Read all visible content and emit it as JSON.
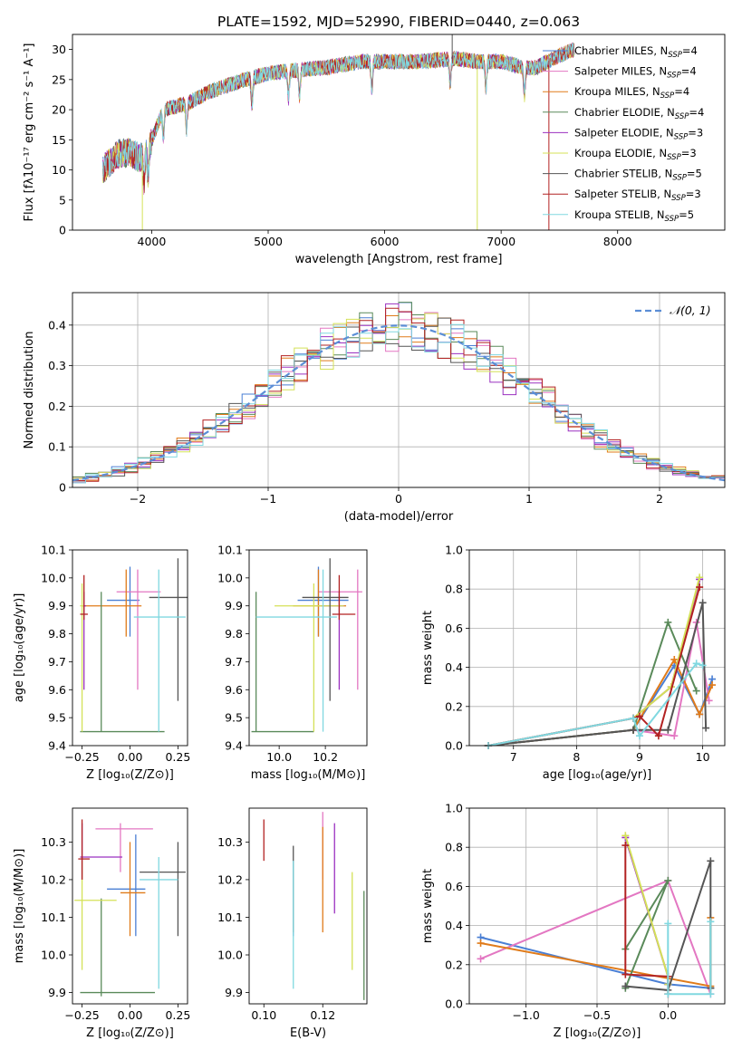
{
  "figure_title": "PLATE=1592, MJD=52990, FIBERID=0440, z=0.063",
  "series": [
    {
      "name": "Chabrier MILES",
      "nssp": "4",
      "color": "#4a7fd4"
    },
    {
      "name": "Salpeter MILES",
      "nssp": "4",
      "color": "#e377c2"
    },
    {
      "name": "Kroupa MILES",
      "nssp": "4",
      "color": "#e07b1a"
    },
    {
      "name": "Chabrier ELODIE",
      "nssp": "4",
      "color": "#5a8a5a"
    },
    {
      "name": "Salpeter ELODIE",
      "nssp": "3",
      "color": "#9b30c0"
    },
    {
      "name": "Kroupa ELODIE",
      "nssp": "3",
      "color": "#d4e157"
    },
    {
      "name": "Chabrier STELIB",
      "nssp": "5",
      "color": "#555555"
    },
    {
      "name": "Salpeter STELIB",
      "nssp": "3",
      "color": "#b22222"
    },
    {
      "name": "Kroupa STELIB",
      "nssp": "5",
      "color": "#80d8e0"
    }
  ],
  "chart_data": [
    {
      "id": "spectrum",
      "type": "line",
      "xlabel": "wavelength [Angstrom, rest frame]",
      "ylabel": "Flux [fλ10⁻¹⁷ erg cm⁻² s⁻¹ A⁻¹]",
      "xlim": [
        3320,
        8920
      ],
      "ylim": [
        0,
        32.5
      ],
      "xticks": [
        4000,
        5000,
        6000,
        7000,
        8000
      ],
      "yticks": [
        0,
        5,
        10,
        15,
        20,
        25,
        30
      ],
      "x_start": 3580,
      "x_end": 7630,
      "continuum": [
        [
          3580,
          10
        ],
        [
          3700,
          12.5
        ],
        [
          3800,
          13
        ],
        [
          3900,
          12
        ],
        [
          3950,
          13
        ],
        [
          4000,
          15
        ],
        [
          4100,
          20
        ],
        [
          4300,
          21
        ],
        [
          4500,
          23
        ],
        [
          4800,
          25
        ],
        [
          5000,
          26
        ],
        [
          5200,
          26.5
        ],
        [
          5500,
          27
        ],
        [
          5800,
          28
        ],
        [
          6000,
          28
        ],
        [
          6300,
          28
        ],
        [
          6600,
          28.5
        ],
        [
          6800,
          28
        ],
        [
          7000,
          28
        ],
        [
          7200,
          27
        ],
        [
          7300,
          27
        ],
        [
          7500,
          29
        ],
        [
          7630,
          30
        ]
      ],
      "absorption_lines": [
        3934,
        3969,
        4101,
        4300,
        4861,
        5175,
        5270,
        5890,
        6563,
        6870,
        7200
      ],
      "spikes": [
        {
          "series": 5,
          "x": 3920,
          "y": 0
        },
        {
          "series": 5,
          "x": 6795,
          "y": 0
        },
        {
          "series": 7,
          "x": 7410,
          "y": 0
        },
        {
          "series": 6,
          "x": 6580,
          "y": 32.5
        }
      ],
      "legend": "right"
    },
    {
      "id": "residual_hist",
      "type": "area",
      "xlabel": "(data-model)/error",
      "ylabel": "Normed distribution",
      "xlim": [
        -2.5,
        2.5
      ],
      "ylim": [
        0,
        0.48
      ],
      "xticks": [
        -2,
        -1,
        0,
        1,
        2
      ],
      "yticks": [
        0,
        0.1,
        0.2,
        0.3,
        0.4
      ],
      "bin_width": 0.1,
      "normal_label": "𝒩(0, 1)",
      "normal_color": "#5b8ed6",
      "grid": true,
      "legend": "top-right"
    },
    {
      "id": "age_vs_Z",
      "type": "scatter",
      "xlabel": "Z [log₁₀(Z/Z⊙)]",
      "ylabel": "age  [log₁₀(age/yr)]",
      "xlim": [
        -0.3,
        0.3
      ],
      "ylim": [
        9.4,
        10.1
      ],
      "xticks": [
        -0.25,
        0.0,
        0.25
      ],
      "xticklabels": [
        "−0.25",
        "0.00",
        "0.25"
      ],
      "yticks": [
        9.4,
        9.5,
        9.6,
        9.7,
        9.8,
        9.9,
        10.0,
        10.1
      ],
      "yticklabels": [
        "9.4",
        "9.5",
        "9.6",
        "9.7",
        "9.8",
        "9.9",
        "10.0",
        "10.1"
      ],
      "points": [
        {
          "s": 0,
          "x": 0.0,
          "xe": [
            -0.12,
            0.05
          ],
          "y": 9.92,
          "ye": [
            9.79,
            10.04
          ]
        },
        {
          "s": 1,
          "x": 0.04,
          "xe": [
            -0.07,
            0.16
          ],
          "y": 9.95,
          "ye": [
            9.6,
            10.03
          ]
        },
        {
          "s": 2,
          "x": -0.02,
          "xe": [
            -0.25,
            0.06
          ],
          "y": 9.9,
          "ye": [
            9.79,
            10.03
          ]
        },
        {
          "s": 3,
          "x": -0.15,
          "xe": [
            -0.26,
            0.18
          ],
          "y": 9.45,
          "ye": [
            9.45,
            9.95
          ]
        },
        {
          "s": 4,
          "x": -0.24,
          "xe": [
            -0.25,
            -0.23
          ],
          "y": 9.9,
          "ye": [
            9.6,
            9.95
          ]
        },
        {
          "s": 5,
          "x": -0.25,
          "xe": [
            -0.26,
            -0.24
          ],
          "y": 9.9,
          "ye": [
            9.45,
            9.98
          ]
        },
        {
          "s": 6,
          "x": 0.25,
          "xe": [
            0.1,
            0.31
          ],
          "y": 9.93,
          "ye": [
            9.56,
            10.07
          ]
        },
        {
          "s": 7,
          "x": -0.24,
          "xe": [
            -0.26,
            -0.22
          ],
          "y": 9.87,
          "ye": [
            9.85,
            10.01
          ]
        },
        {
          "s": 8,
          "x": 0.15,
          "xe": [
            0.02,
            0.29
          ],
          "y": 9.86,
          "ye": [
            9.45,
            10.03
          ]
        }
      ]
    },
    {
      "id": "age_vs_mass",
      "type": "scatter",
      "xlabel": "mass [log₁₀(M/M⊙)]",
      "ylabel": "",
      "xlim": [
        9.87,
        10.38
      ],
      "ylim": [
        9.4,
        10.1
      ],
      "xticks": [
        10.0,
        10.2
      ],
      "xticklabels": [
        "10.0",
        "10.2"
      ],
      "yticks": [
        9.4,
        9.5,
        9.6,
        9.7,
        9.8,
        9.9,
        10.0,
        10.1
      ],
      "yticklabels": [
        "9.4",
        "9.5",
        "9.6",
        "9.7",
        "9.8",
        "9.9",
        "10.0",
        "10.1"
      ],
      "points": [
        {
          "s": 0,
          "x": 10.17,
          "xe": [
            10.08,
            10.3
          ],
          "y": 9.92,
          "ye": [
            9.79,
            10.04
          ]
        },
        {
          "s": 1,
          "x": 10.34,
          "xe": [
            10.17,
            10.36
          ],
          "y": 9.95,
          "ye": [
            9.6,
            10.03
          ]
        },
        {
          "s": 2,
          "x": 10.17,
          "xe": [
            10.06,
            10.29
          ],
          "y": 9.9,
          "ye": [
            9.79,
            10.03
          ]
        },
        {
          "s": 3,
          "x": 9.9,
          "xe": [
            9.88,
            10.15
          ],
          "y": 9.45,
          "ye": [
            9.45,
            9.95
          ]
        },
        {
          "s": 4,
          "x": 10.26,
          "xe": [
            10.18,
            10.28
          ],
          "y": 9.9,
          "ye": [
            9.6,
            9.95
          ]
        },
        {
          "s": 5,
          "x": 10.15,
          "xe": [
            9.98,
            10.28
          ],
          "y": 9.9,
          "ye": [
            9.45,
            9.98
          ]
        },
        {
          "s": 6,
          "x": 10.22,
          "xe": [
            10.1,
            10.3
          ],
          "y": 9.93,
          "ye": [
            9.56,
            10.07
          ]
        },
        {
          "s": 7,
          "x": 10.26,
          "xe": [
            10.23,
            10.33
          ],
          "y": 9.87,
          "ye": [
            9.85,
            10.01
          ]
        },
        {
          "s": 8,
          "x": 10.19,
          "xe": [
            9.9,
            10.25
          ],
          "y": 9.86,
          "ye": [
            9.45,
            10.03
          ]
        }
      ]
    },
    {
      "id": "weight_vs_age",
      "type": "line",
      "xlabel": "age  [log₁₀(age/yr)]",
      "ylabel": "mass weight",
      "xlim": [
        6.3,
        10.35
      ],
      "ylim": [
        0,
        1.0
      ],
      "xticks": [
        7,
        8,
        9,
        10
      ],
      "xticklabels": [
        "7",
        "8",
        "9",
        "10"
      ],
      "yticks": [
        0,
        0.2,
        0.4,
        0.6,
        0.8,
        1.0
      ],
      "yticklabels": [
        "0.0",
        "0.2",
        "0.4",
        "0.6",
        "0.8",
        "1.0"
      ],
      "grid": true,
      "lines": [
        {
          "s": 0,
          "x": [
            6.6,
            8.9,
            9.55,
            9.95,
            10.15
          ],
          "y": [
            0.0,
            0.08,
            0.41,
            0.16,
            0.34
          ]
        },
        {
          "s": 1,
          "x": [
            6.6,
            8.9,
            9.55,
            9.9,
            10.1
          ],
          "y": [
            0.0,
            0.08,
            0.05,
            0.63,
            0.23
          ]
        },
        {
          "s": 2,
          "x": [
            6.6,
            8.9,
            9.55,
            9.95,
            10.15
          ],
          "y": [
            0.0,
            0.08,
            0.44,
            0.16,
            0.31
          ]
        },
        {
          "s": 3,
          "x": [
            6.6,
            8.9,
            9.45,
            9.9
          ],
          "y": [
            0.0,
            0.08,
            0.63,
            0.28
          ]
        },
        {
          "s": 4,
          "x": [
            6.6,
            8.9,
            9.5,
            9.95
          ],
          "y": [
            0.0,
            0.14,
            0.3,
            0.85
          ]
        },
        {
          "s": 5,
          "x": [
            6.6,
            8.9,
            9.5,
            9.95
          ],
          "y": [
            0.0,
            0.14,
            0.3,
            0.86
          ]
        },
        {
          "s": 6,
          "x": [
            6.6,
            8.9,
            9.45,
            10.0,
            10.05
          ],
          "y": [
            0.0,
            0.08,
            0.08,
            0.73,
            0.09
          ]
        },
        {
          "s": 7,
          "x": [
            6.6,
            8.9,
            9.0,
            9.3,
            9.95
          ],
          "y": [
            0.0,
            0.14,
            0.15,
            0.05,
            0.81
          ]
        },
        {
          "s": 8,
          "x": [
            6.6,
            8.9,
            9.0,
            9.9,
            10.0
          ],
          "y": [
            0.0,
            0.14,
            0.05,
            0.42,
            0.41
          ]
        }
      ]
    },
    {
      "id": "mass_vs_Z",
      "type": "scatter",
      "xlabel": "Z [log₁₀(Z/Z⊙)]",
      "ylabel": "mass [log₁₀(M/M⊙)]",
      "xlim": [
        -0.3,
        0.3
      ],
      "ylim": [
        9.87,
        10.39
      ],
      "xticks": [
        -0.25,
        0.0,
        0.25
      ],
      "xticklabels": [
        "−0.25",
        "0.00",
        "0.25"
      ],
      "yticks": [
        9.9,
        10.0,
        10.1,
        10.2,
        10.3
      ],
      "yticklabels": [
        "9.9",
        "10.0",
        "10.1",
        "10.2",
        "10.3"
      ],
      "points": [
        {
          "s": 0,
          "x": 0.03,
          "xe": [
            -0.12,
            0.08
          ],
          "y": 10.175,
          "ye": [
            10.05,
            10.32
          ]
        },
        {
          "s": 1,
          "x": -0.05,
          "xe": [
            -0.18,
            0.12
          ],
          "y": 10.335,
          "ye": [
            10.22,
            10.35
          ]
        },
        {
          "s": 2,
          "x": 0.0,
          "xe": [
            -0.05,
            0.08
          ],
          "y": 10.165,
          "ye": [
            10.05,
            10.3
          ]
        },
        {
          "s": 3,
          "x": -0.15,
          "xe": [
            -0.26,
            0.13
          ],
          "y": 9.9,
          "ye": [
            9.89,
            10.15
          ]
        },
        {
          "s": 4,
          "x": -0.25,
          "xe": [
            -0.26,
            -0.04
          ],
          "y": 10.26,
          "ye": [
            10.2,
            10.35
          ]
        },
        {
          "s": 5,
          "x": -0.25,
          "xe": [
            -0.29,
            -0.07
          ],
          "y": 10.145,
          "ye": [
            9.96,
            10.25
          ]
        },
        {
          "s": 6,
          "x": 0.25,
          "xe": [
            0.05,
            0.29
          ],
          "y": 10.22,
          "ye": [
            10.05,
            10.3
          ]
        },
        {
          "s": 7,
          "x": -0.25,
          "xe": [
            -0.27,
            -0.21
          ],
          "y": 10.255,
          "ye": [
            10.2,
            10.36
          ]
        },
        {
          "s": 8,
          "x": 0.15,
          "xe": [
            0.05,
            0.25
          ],
          "y": 10.2,
          "ye": [
            9.91,
            10.26
          ]
        }
      ]
    },
    {
      "id": "mass_vs_ebv",
      "type": "scatter",
      "xlabel": "E(B-V)",
      "ylabel": "",
      "xlim": [
        0.095,
        0.135
      ],
      "ylim": [
        9.87,
        10.39
      ],
      "xticks": [
        0.1,
        0.12
      ],
      "xticklabels": [
        "0.10",
        "0.12"
      ],
      "yticks": [
        9.9,
        10.0,
        10.1,
        10.2,
        10.3
      ],
      "yticklabels": [
        "9.9",
        "10.0",
        "10.1",
        "10.2",
        "10.3"
      ],
      "points": [
        {
          "s": 0,
          "x": 0.11,
          "y": 10.16,
          "ye": [
            10.05,
            10.25
          ]
        },
        {
          "s": 1,
          "x": 0.12,
          "y": 10.3,
          "ye": [
            10.2,
            10.38
          ]
        },
        {
          "s": 2,
          "x": 0.12,
          "y": 10.17,
          "ye": [
            10.06,
            10.34
          ]
        },
        {
          "s": 3,
          "x": 0.134,
          "y": 10.0,
          "ye": [
            9.88,
            10.17
          ]
        },
        {
          "s": 4,
          "x": 0.124,
          "y": 10.22,
          "ye": [
            10.11,
            10.35
          ]
        },
        {
          "s": 5,
          "x": 0.13,
          "y": 10.1,
          "ye": [
            9.96,
            10.22
          ]
        },
        {
          "s": 6,
          "x": 0.11,
          "y": 10.22,
          "ye": [
            10.06,
            10.29
          ]
        },
        {
          "s": 7,
          "x": 0.1,
          "y": 10.3,
          "ye": [
            10.25,
            10.36
          ]
        },
        {
          "s": 8,
          "x": 0.11,
          "y": 10.08,
          "ye": [
            9.91,
            10.25
          ]
        }
      ]
    },
    {
      "id": "weight_vs_Z",
      "type": "line",
      "xlabel": "Z [log₁₀(Z/Z⊙)]",
      "ylabel": "mass weight",
      "xlim": [
        -1.4,
        0.4
      ],
      "ylim": [
        0,
        1.0
      ],
      "xticks": [
        -1.0,
        -0.5,
        0.0
      ],
      "xticklabels": [
        "−1.0",
        "−0.5",
        "0.0"
      ],
      "yticks": [
        0,
        0.2,
        0.4,
        0.6,
        0.8,
        1.0
      ],
      "yticklabels": [
        "0.0",
        "0.2",
        "0.4",
        "0.6",
        "0.8",
        "1.0"
      ],
      "grid": true,
      "lines": [
        {
          "s": 0,
          "x": [
            -1.32,
            0.0,
            0.3
          ],
          "y": [
            0.34,
            0.1,
            0.08
          ]
        },
        {
          "s": 1,
          "x": [
            -1.32,
            0.0,
            0.3
          ],
          "y": [
            0.23,
            0.63,
            0.05
          ]
        },
        {
          "s": 2,
          "x": [
            -1.32,
            0.3,
            0.3
          ],
          "y": [
            0.31,
            0.09,
            0.44
          ]
        },
        {
          "s": 3,
          "x": [
            -0.3,
            0.0,
            -0.3
          ],
          "y": [
            0.28,
            0.63,
            0.08
          ]
        },
        {
          "s": 4,
          "x": [
            -0.3,
            0.0,
            0.0
          ],
          "y": [
            0.85,
            0.14,
            0.1
          ]
        },
        {
          "s": 5,
          "x": [
            -0.3,
            0.0,
            0.0
          ],
          "y": [
            0.86,
            0.14,
            0.1
          ]
        },
        {
          "s": 6,
          "x": [
            -0.3,
            0.0,
            0.3,
            0.3
          ],
          "y": [
            0.09,
            0.07,
            0.73,
            0.08
          ]
        },
        {
          "s": 7,
          "x": [
            -0.3,
            -0.3,
            0.0,
            0.0
          ],
          "y": [
            0.81,
            0.15,
            0.14,
            0.05
          ]
        },
        {
          "s": 8,
          "x": [
            0.0,
            0.0,
            0.3,
            0.3
          ],
          "y": [
            0.41,
            0.05,
            0.05,
            0.42
          ]
        }
      ]
    }
  ]
}
